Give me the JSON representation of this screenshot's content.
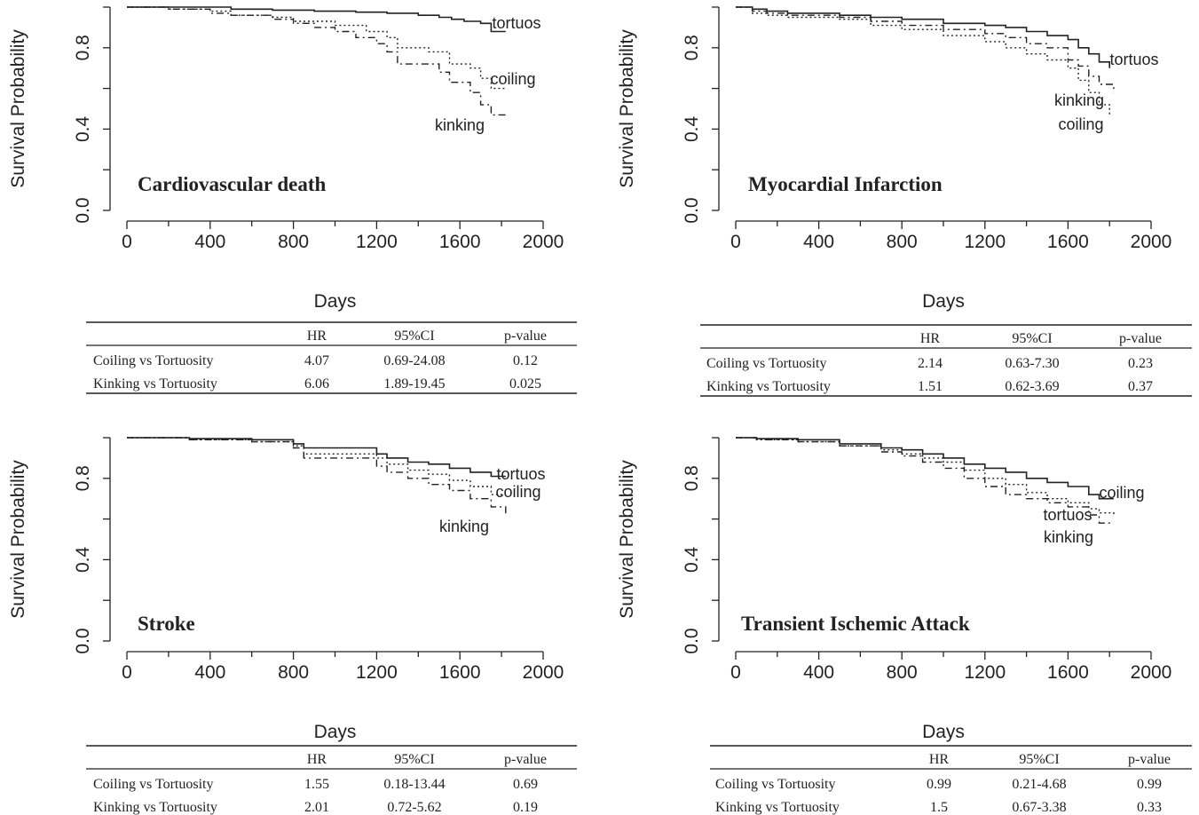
{
  "chart_data": [
    {
      "type": "line",
      "title": "Cardiovascular death",
      "xlabel": "Days",
      "ylabel": "Survival Probability",
      "xlim": [
        0,
        2000
      ],
      "ylim": [
        0,
        1
      ],
      "xticks": [
        "0",
        "400",
        "800",
        "1200",
        "1600",
        "2000"
      ],
      "yticks": [
        "0.0",
        "0.4",
        "0.8"
      ],
      "series": [
        {
          "name": "tortuos",
          "style": "solid",
          "label": "tortuos",
          "x": [
            0,
            300,
            500,
            700,
            900,
            1100,
            1250,
            1400,
            1500,
            1560,
            1620,
            1700,
            1750,
            1820
          ],
          "y": [
            1.0,
            1.0,
            0.99,
            0.985,
            0.98,
            0.975,
            0.97,
            0.96,
            0.95,
            0.94,
            0.93,
            0.92,
            0.88,
            0.88
          ]
        },
        {
          "name": "coiling",
          "style": "dotted",
          "label": "coiling",
          "x": [
            0,
            200,
            400,
            500,
            700,
            800,
            1000,
            1150,
            1250,
            1300,
            1450,
            1550,
            1650,
            1700,
            1750,
            1820
          ],
          "y": [
            1.0,
            0.99,
            0.98,
            0.96,
            0.95,
            0.93,
            0.91,
            0.88,
            0.85,
            0.8,
            0.78,
            0.72,
            0.7,
            0.65,
            0.6,
            0.6
          ]
        },
        {
          "name": "kinking",
          "style": "dashdot",
          "label": "kinking",
          "x": [
            0,
            200,
            400,
            500,
            700,
            800,
            900,
            1000,
            1100,
            1200,
            1250,
            1300,
            1500,
            1550,
            1650,
            1700,
            1750,
            1820
          ],
          "y": [
            1.0,
            0.99,
            0.97,
            0.96,
            0.94,
            0.92,
            0.9,
            0.88,
            0.85,
            0.82,
            0.78,
            0.72,
            0.68,
            0.63,
            0.58,
            0.52,
            0.47,
            0.47
          ]
        }
      ],
      "table": {
        "headers": [
          "",
          "HR",
          "95%CI",
          "p-value"
        ],
        "rows": [
          [
            "Coiling vs Tortuosity",
            "4.07",
            "0.69-24.08",
            "0.12"
          ],
          [
            "Kinking vs Tortuosity",
            "6.06",
            "1.89-19.45",
            "0.025"
          ]
        ]
      }
    },
    {
      "type": "line",
      "title": "Myocardial Infarction",
      "xlabel": "Days",
      "ylabel": "Survival Probability",
      "xlim": [
        0,
        2000
      ],
      "ylim": [
        0,
        1
      ],
      "xticks": [
        "0",
        "400",
        "800",
        "1200",
        "1600",
        "2000"
      ],
      "yticks": [
        "0.0",
        "0.4",
        "0.8"
      ],
      "series": [
        {
          "name": "tortuos",
          "style": "solid",
          "label": "tortuos",
          "x": [
            0,
            80,
            150,
            250,
            500,
            650,
            800,
            1000,
            1200,
            1300,
            1400,
            1500,
            1600,
            1650,
            1700,
            1750,
            1800
          ],
          "y": [
            1.0,
            0.99,
            0.98,
            0.97,
            0.96,
            0.95,
            0.94,
            0.92,
            0.91,
            0.9,
            0.88,
            0.86,
            0.84,
            0.8,
            0.77,
            0.73,
            0.7
          ]
        },
        {
          "name": "kinking",
          "style": "dashdot",
          "label": "kinking",
          "x": [
            0,
            80,
            150,
            250,
            500,
            650,
            800,
            1000,
            1200,
            1300,
            1400,
            1500,
            1600,
            1650,
            1700,
            1750,
            1820
          ],
          "y": [
            1.0,
            0.98,
            0.97,
            0.96,
            0.95,
            0.93,
            0.91,
            0.89,
            0.87,
            0.85,
            0.82,
            0.8,
            0.74,
            0.71,
            0.66,
            0.62,
            0.58
          ]
        },
        {
          "name": "coiling",
          "style": "dotted",
          "label": "coiling",
          "x": [
            0,
            80,
            150,
            250,
            500,
            650,
            800,
            1000,
            1200,
            1300,
            1400,
            1500,
            1600,
            1650,
            1700,
            1750,
            1800
          ],
          "y": [
            1.0,
            0.97,
            0.96,
            0.95,
            0.94,
            0.91,
            0.89,
            0.86,
            0.83,
            0.8,
            0.77,
            0.74,
            0.7,
            0.64,
            0.58,
            0.52,
            0.47
          ]
        }
      ],
      "table": {
        "headers": [
          "",
          "HR",
          "95%CI",
          "p-value"
        ],
        "rows": [
          [
            "Coiling vs Tortuosity",
            "2.14",
            "0.63-7.30",
            "0.23"
          ],
          [
            "Kinking vs Tortuosity",
            "1.51",
            "0.62-3.69",
            "0.37"
          ]
        ]
      }
    },
    {
      "type": "line",
      "title": "Stroke",
      "xlabel": "Days",
      "ylabel": "Survival Probability",
      "xlim": [
        0,
        2000
      ],
      "ylim": [
        0,
        1
      ],
      "xticks": [
        "0",
        "400",
        "800",
        "1200",
        "1600",
        "2000"
      ],
      "yticks": [
        "0.0",
        "0.4",
        "0.8"
      ],
      "series": [
        {
          "name": "tortuos",
          "style": "solid",
          "label": "tortuos",
          "x": [
            0,
            300,
            600,
            800,
            850,
            1200,
            1250,
            1350,
            1450,
            1550,
            1650,
            1750,
            1820
          ],
          "y": [
            1.0,
            0.995,
            0.99,
            0.97,
            0.95,
            0.92,
            0.9,
            0.88,
            0.87,
            0.85,
            0.83,
            0.81,
            0.81
          ]
        },
        {
          "name": "coiling",
          "style": "dotted",
          "label": "coiling",
          "x": [
            0,
            300,
            600,
            800,
            850,
            1200,
            1250,
            1350,
            1450,
            1550,
            1650,
            1750,
            1820
          ],
          "y": [
            1.0,
            0.99,
            0.98,
            0.96,
            0.92,
            0.9,
            0.87,
            0.84,
            0.82,
            0.79,
            0.76,
            0.72,
            0.72
          ]
        },
        {
          "name": "kinking",
          "style": "dashdot",
          "label": "kinking",
          "x": [
            0,
            300,
            600,
            800,
            850,
            1200,
            1250,
            1350,
            1450,
            1550,
            1650,
            1750,
            1820
          ],
          "y": [
            1.0,
            0.99,
            0.98,
            0.95,
            0.9,
            0.86,
            0.83,
            0.8,
            0.77,
            0.74,
            0.7,
            0.66,
            0.62
          ]
        }
      ],
      "table": {
        "headers": [
          "",
          "HR",
          "95%CI",
          "p-value"
        ],
        "rows": [
          [
            "Coiling vs Tortuosity",
            "1.55",
            "0.18-13.44",
            "0.69"
          ],
          [
            "Kinking vs Tortuosity",
            "2.01",
            "0.72-5.62",
            "0.19"
          ]
        ]
      }
    },
    {
      "type": "line",
      "title": "Transient Ischemic Attack",
      "xlabel": "Days",
      "ylabel": "Survival Probability",
      "xlim": [
        0,
        2000
      ],
      "ylim": [
        0,
        1
      ],
      "xticks": [
        "0",
        "400",
        "800",
        "1200",
        "1600",
        "2000"
      ],
      "yticks": [
        "0.0",
        "0.4",
        "0.8"
      ],
      "series": [
        {
          "name": "coiling",
          "style": "solid",
          "label": "coiling",
          "x": [
            0,
            100,
            300,
            500,
            700,
            800,
            900,
            1000,
            1100,
            1200,
            1300,
            1400,
            1500,
            1600,
            1700,
            1750,
            1820
          ],
          "y": [
            1.0,
            0.995,
            0.99,
            0.97,
            0.95,
            0.94,
            0.92,
            0.9,
            0.87,
            0.85,
            0.83,
            0.8,
            0.78,
            0.76,
            0.72,
            0.7,
            0.7
          ]
        },
        {
          "name": "tortuos",
          "style": "dotted",
          "label": "tortuos",
          "x": [
            0,
            100,
            300,
            500,
            700,
            800,
            900,
            1000,
            1100,
            1200,
            1300,
            1400,
            1500,
            1600,
            1700,
            1750,
            1820
          ],
          "y": [
            1.0,
            0.99,
            0.98,
            0.96,
            0.94,
            0.92,
            0.9,
            0.88,
            0.84,
            0.8,
            0.77,
            0.73,
            0.7,
            0.68,
            0.65,
            0.63,
            0.62
          ]
        },
        {
          "name": "kinking",
          "style": "dashdot",
          "label": "kinking",
          "x": [
            0,
            100,
            300,
            500,
            700,
            800,
            900,
            1000,
            1100,
            1200,
            1300,
            1400,
            1500,
            1600,
            1700,
            1750,
            1820
          ],
          "y": [
            1.0,
            0.99,
            0.98,
            0.96,
            0.93,
            0.91,
            0.88,
            0.85,
            0.8,
            0.76,
            0.72,
            0.7,
            0.68,
            0.66,
            0.62,
            0.58,
            0.58
          ]
        }
      ],
      "table": {
        "headers": [
          "",
          "HR",
          "95%CI",
          "p-value"
        ],
        "rows": [
          [
            "Coiling vs Tortuosity",
            "0.99",
            "0.21-4.68",
            "0.99"
          ],
          [
            "Kinking vs Tortuosity",
            "1.5",
            "0.67-3.38",
            "0.33"
          ]
        ]
      }
    }
  ]
}
